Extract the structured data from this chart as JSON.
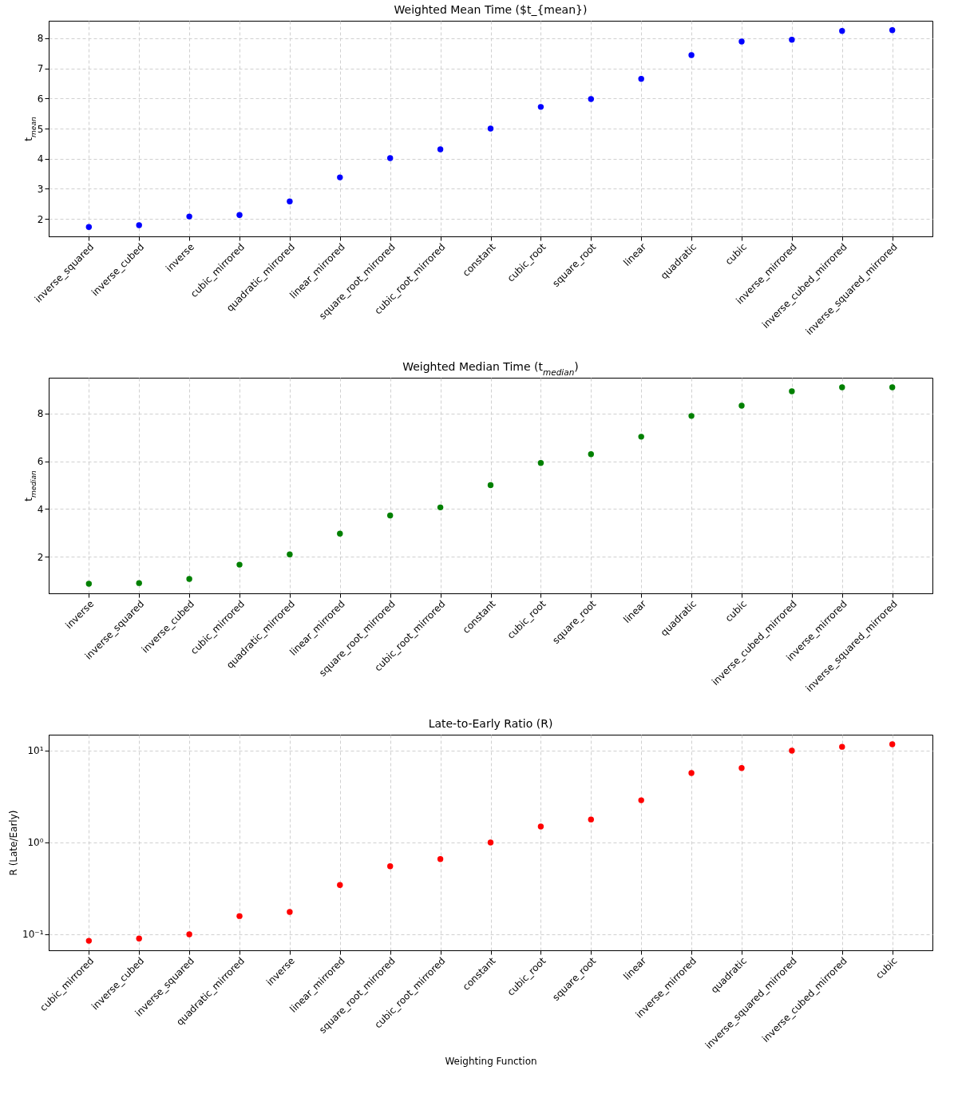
{
  "chart_data": [
    {
      "type": "scatter",
      "title": "Weighted Mean Time ($t_{mean})",
      "ylabel": "t$_{mean}$",
      "categories": [
        "inverse_squared",
        "inverse_cubed",
        "inverse",
        "cubic_mirrored",
        "quadratic_mirrored",
        "linear_mirrored",
        "square_root_mirrored",
        "cubic_root_mirrored",
        "constant",
        "cubic_root",
        "square_root",
        "linear",
        "quadratic",
        "cubic",
        "inverse_mirrored",
        "inverse_cubed_mirrored",
        "inverse_squared_mirrored"
      ],
      "series": [
        {
          "color": "#0000ff",
          "values": [
            1.73,
            1.79,
            2.08,
            2.13,
            2.58,
            3.38,
            4.02,
            4.31,
            5.0,
            5.72,
            5.98,
            6.65,
            7.44,
            7.89,
            7.95,
            8.24,
            8.27
          ]
        }
      ],
      "ylim": [
        1.42,
        8.58
      ],
      "yticks": [
        2,
        3,
        4,
        5,
        6,
        7,
        8
      ],
      "grid": true,
      "marker": "circle"
    },
    {
      "type": "scatter",
      "title": "Weighted Median Time (t$_{median}$)",
      "ylabel": "t$_{median}$",
      "categories": [
        "inverse",
        "inverse_squared",
        "inverse_cubed",
        "cubic_mirrored",
        "quadratic_mirrored",
        "linear_mirrored",
        "square_root_mirrored",
        "cubic_root_mirrored",
        "constant",
        "cubic_root",
        "square_root",
        "linear",
        "quadratic",
        "cubic",
        "inverse_cubed_mirrored",
        "inverse_mirrored",
        "inverse_squared_mirrored"
      ],
      "series": [
        {
          "color": "#008000",
          "values": [
            0.87,
            0.9,
            1.07,
            1.67,
            2.1,
            2.97,
            3.73,
            4.07,
            5.0,
            5.93,
            6.3,
            7.03,
            7.9,
            8.33,
            8.93,
            9.1,
            9.1
          ]
        }
      ],
      "ylim": [
        0.47,
        9.5
      ],
      "yticks": [
        2,
        4,
        6,
        8
      ],
      "grid": true,
      "marker": "circle"
    },
    {
      "type": "scatter",
      "title": "Late-to-Early Ratio (R)",
      "ylabel": "R (Late/Early)",
      "xlabel": "Weighting Function",
      "log": true,
      "categories": [
        "cubic_mirrored",
        "inverse_cubed",
        "inverse_squared",
        "quadratic_mirrored",
        "inverse",
        "linear_mirrored",
        "square_root_mirrored",
        "cubic_root_mirrored",
        "constant",
        "cubic_root",
        "square_root",
        "linear",
        "inverse_mirrored",
        "quadratic",
        "inverse_squared_mirrored",
        "inverse_cubed_mirrored",
        "cubic"
      ],
      "series": [
        {
          "color": "#ff0000",
          "values": [
            0.085,
            0.09,
            0.1,
            0.158,
            0.175,
            0.344,
            0.55,
            0.66,
            1.0,
            1.49,
            1.78,
            2.88,
            5.7,
            6.45,
            10,
            11.0,
            11.7
          ]
        }
      ],
      "ylim": [
        0.067,
        14.9
      ],
      "yticks": [
        {
          "value": 0.1,
          "label": "10⁻¹"
        },
        {
          "value": 1,
          "label": "10⁰"
        },
        {
          "value": 10,
          "label": "10¹"
        }
      ],
      "grid": true,
      "marker": "circle"
    }
  ]
}
